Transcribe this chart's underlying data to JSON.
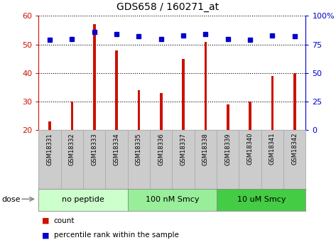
{
  "title": "GDS658 / 160271_at",
  "samples": [
    "GSM18331",
    "GSM18332",
    "GSM18333",
    "GSM18334",
    "GSM18335",
    "GSM18336",
    "GSM18337",
    "GSM18338",
    "GSM18339",
    "GSM18340",
    "GSM18341",
    "GSM18342"
  ],
  "count_values": [
    23,
    30,
    57,
    48,
    34,
    33,
    45,
    51,
    29,
    30,
    39,
    40
  ],
  "percentile_values": [
    79,
    80,
    86,
    84,
    82,
    80,
    83,
    84,
    80,
    79,
    83,
    82
  ],
  "bar_color": "#cc1100",
  "dot_color": "#0000cc",
  "ylim_left": [
    20,
    60
  ],
  "ylim_right": [
    0,
    100
  ],
  "yticks_left": [
    20,
    30,
    40,
    50,
    60
  ],
  "yticks_right": [
    0,
    25,
    50,
    75,
    100
  ],
  "ytick_labels_right": [
    "0",
    "25",
    "50",
    "75",
    "100%"
  ],
  "groups": [
    {
      "label": "no peptide",
      "start": 0,
      "end": 4,
      "color": "#ccffcc"
    },
    {
      "label": "100 nM Smcy",
      "start": 4,
      "end": 8,
      "color": "#99ee99"
    },
    {
      "label": "10 uM Smcy",
      "start": 8,
      "end": 12,
      "color": "#44cc44"
    }
  ],
  "dose_label": "dose",
  "legend_count_label": "count",
  "legend_percentile_label": "percentile rank within the sample",
  "tick_label_bg": "#cccccc",
  "bar_width": 0.12
}
